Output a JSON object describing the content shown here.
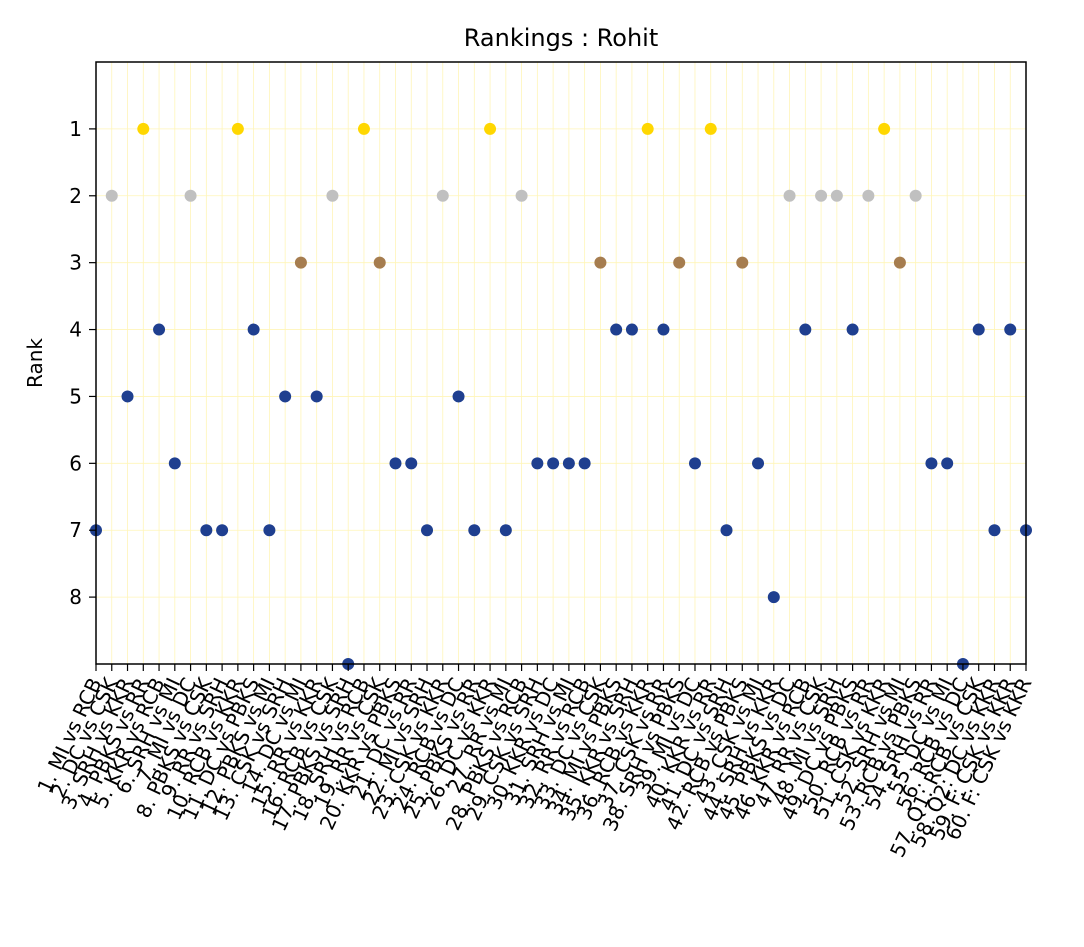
{
  "chart_data": {
    "type": "scatter",
    "title": "Rankings : Rohit",
    "xlabel": "",
    "ylabel": "Rank",
    "ylim": [
      9,
      0
    ],
    "yticks": [
      1,
      2,
      3,
      4,
      5,
      6,
      7,
      8
    ],
    "y_inverted": true,
    "grid": true,
    "legend": "none",
    "colors": {
      "gold": "#FFD700",
      "silver": "#C0C0C0",
      "bronze": "#A67D4F",
      "other": "#1F3F8F",
      "grid": "#FFF5B8"
    },
    "categories": [
      "1. MI vs RCB",
      "2. DC vs CSK",
      "3. SRH vs KKR",
      "4. PBKS vs RR",
      "5. KKR vs RCB",
      "6. SRH vs MI",
      "7. MI vs DC",
      "8. PBKS vs CSK",
      "9. RR vs SRH",
      "10. RCB vs KKR",
      "11. DC vs PBKS",
      "12. PBKS vs MI",
      "13. CSK vs SRH",
      "14. DC vs MI",
      "15. RR vs KKR",
      "16. RCB vs CSK",
      "17. PBKS vs SRH",
      "18. SRH vs RCB",
      "19. RR vs CSK",
      "20. KKR vs PBKS",
      "21. DC vs RR",
      "22. MI vs SRH",
      "23. CSK vs KKR",
      "24. RCB vs DC",
      "25. PBKS vs RR",
      "26. DC vs KKR",
      "27. RR vs MI",
      "28. PBKS vs RCB",
      "29. CSK vs SRH",
      "30. KKR vs DC",
      "31. SRH vs MI",
      "32. RR vs RCB",
      "33. DC vs CSK",
      "34. MI vs PBKS",
      "35. KKR vs SRH",
      "36. RCB vs KKR",
      "37. CSK vs RR",
      "38. SRH vs PBKS",
      "39. MI vs DC",
      "40. KKR vs RR",
      "41. DC vs SRH",
      "42. RCB vs PBKS",
      "43. CSK vs MI",
      "44. SRH vs KKR",
      "45. PBKS vs DC",
      "46. KKR vs RCB",
      "47. RR vs CSK",
      "48. MI vs SRH",
      "49. DC vs PBKS",
      "50. RCB vs RR",
      "51. CSK vs KKR",
      "52. SRH vs MI",
      "53. RCB vs PBKS",
      "54. SRH vs RR",
      "55. DC vs MI",
      "56. RCB vs DC",
      "57. Q1: RCB vs CSK",
      "58. Q2: DC vs KKR",
      "59. F: CSK vs KKR",
      "60. F: CSK vs KKR"
    ],
    "values": [
      7,
      2,
      5,
      1,
      4,
      6,
      2,
      7,
      7,
      1,
      4,
      7,
      5,
      3,
      5,
      2,
      9,
      1,
      3,
      6,
      6,
      7,
      2,
      5,
      7,
      1,
      7,
      2,
      6,
      6,
      6,
      6,
      3,
      4,
      4,
      1,
      4,
      3,
      6,
      1,
      7,
      3,
      6,
      8,
      2,
      4,
      2,
      2,
      4,
      2,
      1,
      3,
      2,
      6,
      6,
      9,
      4,
      7,
      4,
      7
    ]
  }
}
